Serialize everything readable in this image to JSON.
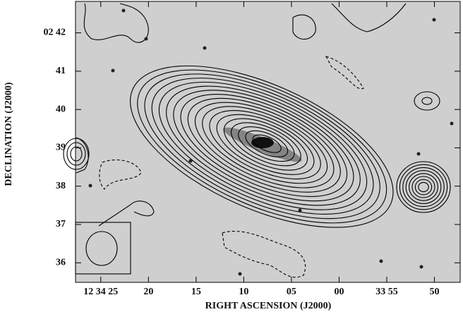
{
  "chart_data": {
    "type": "contour",
    "x_label": "RIGHT ASCENSION (J2000)",
    "y_label": "DECLINATION (J2000)",
    "xlim": [
      27.65,
      -12.7
    ],
    "xticks": [
      {
        "value": 25,
        "label": "12 34 25"
      },
      20,
      15,
      10,
      {
        "value": 5,
        "label": "05"
      },
      {
        "value": 0,
        "label": "00"
      },
      {
        "value": -5,
        "label": "33 55"
      },
      {
        "value": -10,
        "label": "50"
      }
    ],
    "ylim": [
      35.49,
      42.82
    ],
    "yticks": [
      {
        "value": 42,
        "label": "02 42"
      },
      41,
      40,
      39,
      38,
      37,
      36
    ]
  }
}
